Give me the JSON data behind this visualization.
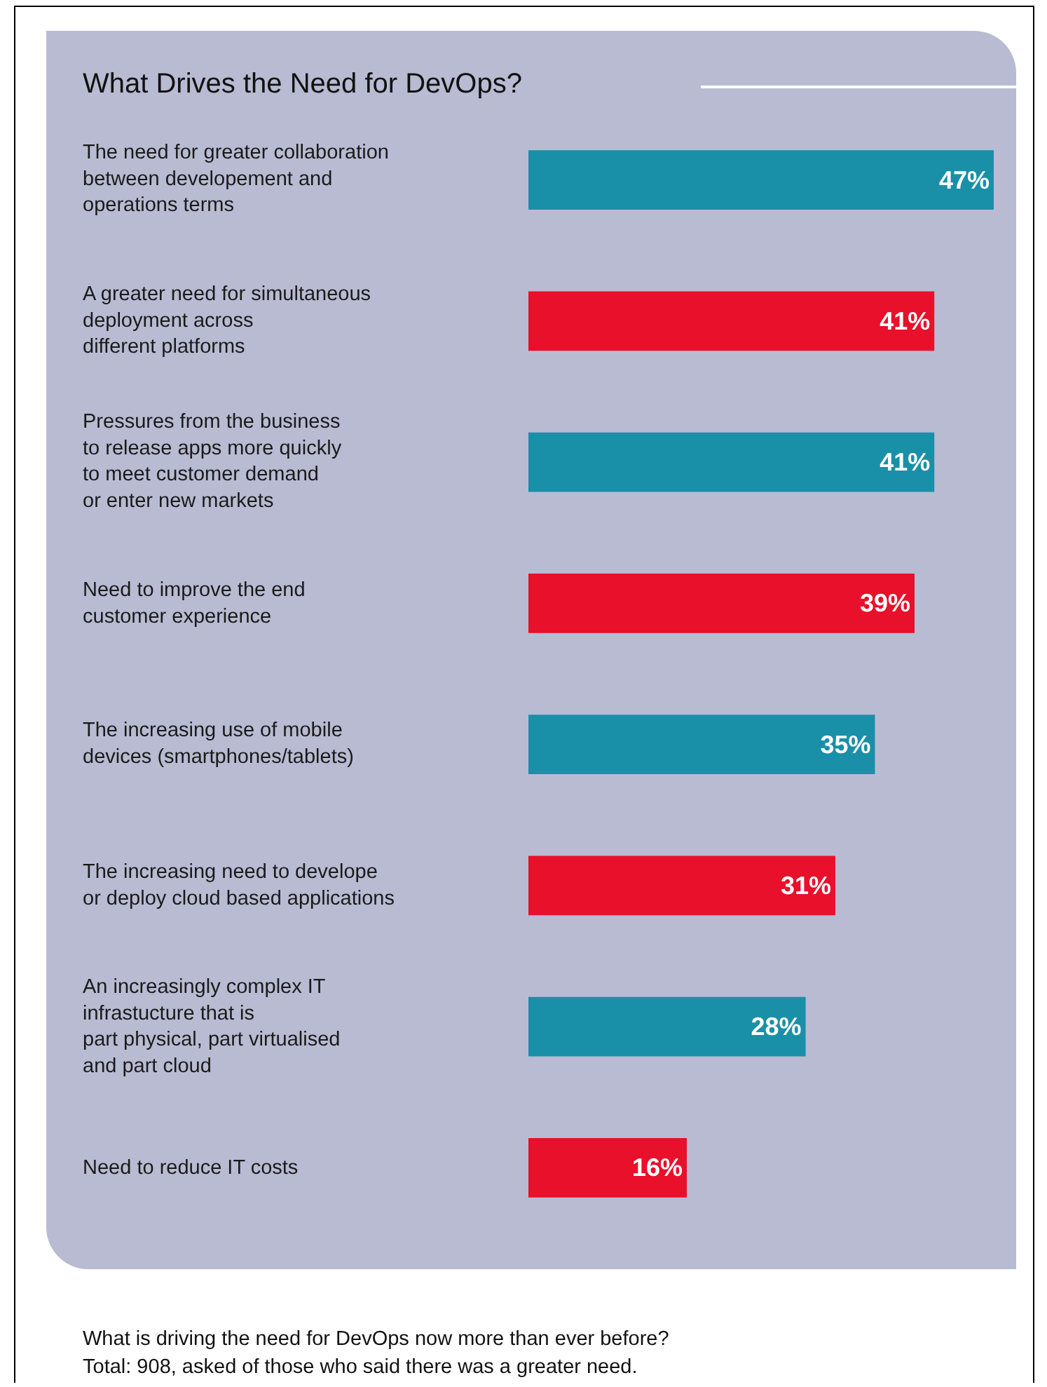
{
  "chart_data": {
    "type": "bar",
    "orientation": "horizontal",
    "title": "What Drives the Need for DevOps?",
    "categories": [
      "The need for greater collaboration\nbetween developement and\noperations terms",
      "A greater need for simultaneous\ndeployment across\ndifferent platforms",
      "Pressures from the business\nto release apps more quickly\nto meet customer demand\nor enter new markets",
      "Need to improve the end\ncustomer experience",
      "The increasing use of mobile\ndevices (smartphones/tablets)",
      "The increasing need to develope\nor deploy cloud based applications",
      "An increasingly complex IT\ninfrastucture that is\npart physical, part virtualised\nand part cloud",
      "Need to reduce IT costs"
    ],
    "values": [
      47,
      41,
      41,
      39,
      35,
      31,
      28,
      16
    ],
    "colors": [
      "#1a8fa8",
      "#e8102a",
      "#1a8fa8",
      "#e8102a",
      "#1a8fa8",
      "#e8102a",
      "#1a8fa8",
      "#e8102a"
    ],
    "value_labels": [
      "47%",
      "41%",
      "41%",
      "39%",
      "35%",
      "31%",
      "28%",
      "16%"
    ],
    "grid": false,
    "annotations": [
      "What is driving the need for DevOps now more than ever before?",
      "Total: 908, asked of those who said there was a greater need."
    ]
  }
}
